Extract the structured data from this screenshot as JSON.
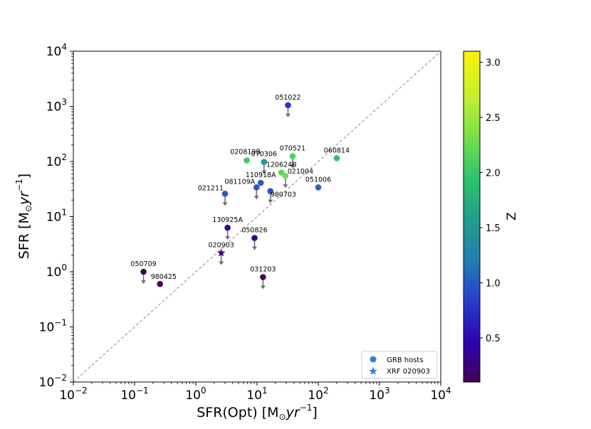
{
  "chart_data": {
    "type": "scatter",
    "xlabel": "SFR(Opt) [M",
    "xlabel_sub": "⊙",
    "xlabel_tail": "yr",
    "xlabel_exp": "−1",
    "xlabel_close": "]",
    "ylabel": "SFR [M",
    "ylabel_sub": "⊙",
    "ylabel_tail": "yr",
    "ylabel_exp": "−1",
    "ylabel_close": "]",
    "xscale": "log",
    "yscale": "log",
    "xlim": [
      0.01,
      10000
    ],
    "ylim": [
      0.01,
      10000
    ],
    "x_ticks": [
      {
        "value": 0.01,
        "base": "10",
        "exp": "−2"
      },
      {
        "value": 0.1,
        "base": "10",
        "exp": "−1"
      },
      {
        "value": 1,
        "base": "10",
        "exp": "0"
      },
      {
        "value": 10,
        "base": "10",
        "exp": "1"
      },
      {
        "value": 100,
        "base": "10",
        "exp": "2"
      },
      {
        "value": 1000,
        "base": "10",
        "exp": "3"
      },
      {
        "value": 10000,
        "base": "10",
        "exp": "4"
      }
    ],
    "y_ticks": [
      {
        "value": 0.01,
        "base": "10",
        "exp": "−2"
      },
      {
        "value": 0.1,
        "base": "10",
        "exp": "−1"
      },
      {
        "value": 1,
        "base": "10",
        "exp": "0"
      },
      {
        "value": 10,
        "base": "10",
        "exp": "1"
      },
      {
        "value": 100,
        "base": "10",
        "exp": "2"
      },
      {
        "value": 1000,
        "base": "10",
        "exp": "3"
      },
      {
        "value": 10000,
        "base": "10",
        "exp": "4"
      }
    ],
    "reference_line": "1:1",
    "colorbar": {
      "label": "Z",
      "range": [
        0.1,
        3.1
      ],
      "ticks": [
        "0.5",
        "1.0",
        "1.5",
        "2.0",
        "2.5",
        "3.0"
      ],
      "tick_values": [
        0.5,
        1.0,
        1.5,
        2.0,
        2.5,
        3.0
      ]
    },
    "legend": {
      "position": "bottom-right",
      "entries": [
        {
          "label": "GRB hosts",
          "marker": "circle",
          "color": "#1f77b4"
        },
        {
          "label": "XRF 020903",
          "marker": "star",
          "color": "#1f77b4"
        }
      ]
    },
    "points": [
      {
        "name": "051022",
        "x": 32,
        "y": 1050,
        "z": 0.8,
        "upper_limit": true,
        "label_pos": "above"
      },
      {
        "name": "020819B",
        "x": 6.8,
        "y": 105,
        "z": 2.05,
        "upper_limit": false,
        "label_pos": "above-left"
      },
      {
        "name": "070306",
        "x": 13,
        "y": 98,
        "z": 1.5,
        "upper_limit": true,
        "label_pos": "above"
      },
      {
        "name": "070521",
        "x": 38,
        "y": 125,
        "z": 2.1,
        "upper_limit": true,
        "label_pos": "above"
      },
      {
        "name": "060814",
        "x": 200,
        "y": 115,
        "z": 1.9,
        "upper_limit": false,
        "label_pos": "above"
      },
      {
        "name": "120624B",
        "x": 25,
        "y": 63,
        "z": 2.2,
        "upper_limit": false,
        "label_pos": "above"
      },
      {
        "name": "021004",
        "x": 29,
        "y": 55,
        "z": 2.3,
        "upper_limit": true,
        "label_pos": "right"
      },
      {
        "name": "110918A",
        "x": 11.5,
        "y": 41,
        "z": 1.0,
        "upper_limit": false,
        "label_pos": "above"
      },
      {
        "name": "081109A",
        "x": 9.8,
        "y": 34,
        "z": 1.0,
        "upper_limit": true,
        "label_pos": "left"
      },
      {
        "name": "051006",
        "x": 100,
        "y": 34,
        "z": 1.06,
        "upper_limit": false,
        "label_pos": "above"
      },
      {
        "name": "980703",
        "x": 16.5,
        "y": 29,
        "z": 0.97,
        "upper_limit": true,
        "label_pos": "below-right"
      },
      {
        "name": "021211",
        "x": 3.0,
        "y": 26,
        "z": 1.0,
        "upper_limit": true,
        "label_pos": "left"
      },
      {
        "name": "130925A",
        "x": 3.3,
        "y": 6.3,
        "z": 0.35,
        "upper_limit": true,
        "label_pos": "above"
      },
      {
        "name": "050826",
        "x": 9.1,
        "y": 4.1,
        "z": 0.3,
        "upper_limit": true,
        "label_pos": "above"
      },
      {
        "name": "020903",
        "x": 2.6,
        "y": 2.2,
        "z": 0.25,
        "upper_limit": true,
        "label_pos": "above",
        "marker": "star"
      },
      {
        "name": "050709",
        "x": 0.14,
        "y": 1.0,
        "z": 0.16,
        "upper_limit": true,
        "label_pos": "above"
      },
      {
        "name": "980425",
        "x": 0.26,
        "y": 0.6,
        "z": 0.01,
        "upper_limit": false,
        "label_pos": "above-right"
      },
      {
        "name": "031203",
        "x": 12.5,
        "y": 0.8,
        "z": 0.1,
        "upper_limit": true,
        "label_pos": "above"
      }
    ]
  }
}
